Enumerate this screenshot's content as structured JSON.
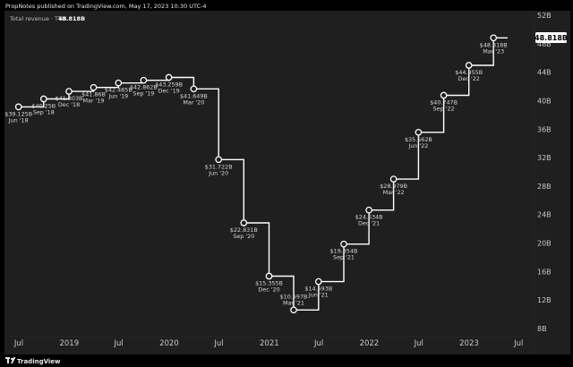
{
  "header": {
    "published": "PropNotes published on TradingView.com, May 17, 2023 10:30 UTC-4"
  },
  "legend": {
    "label": "Total revenue · TTM",
    "value": "48.818B"
  },
  "last_price_tag": "48.818B",
  "footer": {
    "brand": "TradingView"
  },
  "colors": {
    "line": "#ffffff",
    "background": "#1f1f1f",
    "outer": "#000000",
    "tag_bg": "#ffffff",
    "tag_text": "#000000"
  },
  "chart_data": {
    "type": "line",
    "step": true,
    "title": "",
    "series": [
      {
        "name": "Total revenue · TTM",
        "points": [
          {
            "x": "2018-06-30",
            "y": 39.125,
            "value_label": "$39.125B",
            "date_label": "Jun '18",
            "label_side": "below"
          },
          {
            "x": "2018-09-30",
            "y": 40.25,
            "value_label": "$40.25B",
            "date_label": "Sep '18",
            "label_side": "below"
          },
          {
            "x": "2018-12-31",
            "y": 41.303,
            "value_label": "$41.303B",
            "date_label": "Dec '18",
            "label_side": "below"
          },
          {
            "x": "2019-03-31",
            "y": 41.86,
            "value_label": "$41.86B",
            "date_label": "Mar '19",
            "label_side": "below"
          },
          {
            "x": "2019-06-30",
            "y": 42.485,
            "value_label": "$42.485B",
            "date_label": "Jun '19",
            "label_side": "below"
          },
          {
            "x": "2019-09-30",
            "y": 42.862,
            "value_label": "$42.862B",
            "date_label": "Sep '19",
            "label_side": "below"
          },
          {
            "x": "2019-12-31",
            "y": 43.259,
            "value_label": "$43.259B",
            "date_label": "Dec '19",
            "label_side": "below"
          },
          {
            "x": "2020-03-31",
            "y": 41.649,
            "value_label": "$41.649B",
            "date_label": "Mar '20",
            "label_side": "below"
          },
          {
            "x": "2020-06-30",
            "y": 31.722,
            "value_label": "$31.722B",
            "date_label": "Jun '20",
            "label_side": "below"
          },
          {
            "x": "2020-09-30",
            "y": 22.831,
            "value_label": "$22.831B",
            "date_label": "Sep '20",
            "label_side": "below"
          },
          {
            "x": "2020-12-31",
            "y": 15.355,
            "value_label": "$15.355B",
            "date_label": "Dec '20",
            "label_side": "below"
          },
          {
            "x": "2021-03-31",
            "y": 10.597,
            "value_label": "$10.597B",
            "date_label": "Mar '21",
            "label_side": "above"
          },
          {
            "x": "2021-06-30",
            "y": 14.593,
            "value_label": "$14.593B",
            "date_label": "Jun '21",
            "label_side": "below"
          },
          {
            "x": "2021-09-30",
            "y": 19.854,
            "value_label": "$19.854B",
            "date_label": "Sep '21",
            "label_side": "below"
          },
          {
            "x": "2021-12-31",
            "y": 24.634,
            "value_label": "$24.634B",
            "date_label": "Dec '21",
            "label_side": "below"
          },
          {
            "x": "2022-03-31",
            "y": 28.979,
            "value_label": "$28.979B",
            "date_label": "Mar '22",
            "label_side": "below"
          },
          {
            "x": "2022-06-30",
            "y": 35.562,
            "value_label": "$35.562B",
            "date_label": "Jun '22",
            "label_side": "below"
          },
          {
            "x": "2022-09-30",
            "y": 40.747,
            "value_label": "$40.747B",
            "date_label": "Sep '22",
            "label_side": "below"
          },
          {
            "x": "2022-12-31",
            "y": 44.955,
            "value_label": "$44.955B",
            "date_label": "Dec '22",
            "label_side": "below"
          },
          {
            "x": "2023-03-31",
            "y": 48.818,
            "value_label": "$48.818B",
            "date_label": "Mar '23",
            "label_side": "below"
          }
        ]
      }
    ],
    "y_axis": {
      "unit": "B",
      "ylim": [
        8,
        52
      ],
      "ticks": [
        "8B",
        "12B",
        "16B",
        "20B",
        "24B",
        "28B",
        "32B",
        "36B",
        "40B",
        "44B",
        "48B",
        "52B"
      ]
    },
    "x_axis": {
      "ticks": [
        {
          "x": "2018-07-01",
          "label": "Jul"
        },
        {
          "x": "2019-01-01",
          "label": "2019"
        },
        {
          "x": "2019-07-01",
          "label": "Jul"
        },
        {
          "x": "2020-01-01",
          "label": "2020"
        },
        {
          "x": "2020-07-01",
          "label": "Jul"
        },
        {
          "x": "2021-01-01",
          "label": "2021"
        },
        {
          "x": "2021-07-01",
          "label": "Jul"
        },
        {
          "x": "2022-01-01",
          "label": "2022"
        },
        {
          "x": "2022-07-01",
          "label": "Jul"
        },
        {
          "x": "2023-01-01",
          "label": "2023"
        },
        {
          "x": "2023-07-01",
          "label": "Jul"
        }
      ]
    },
    "grid": false
  }
}
